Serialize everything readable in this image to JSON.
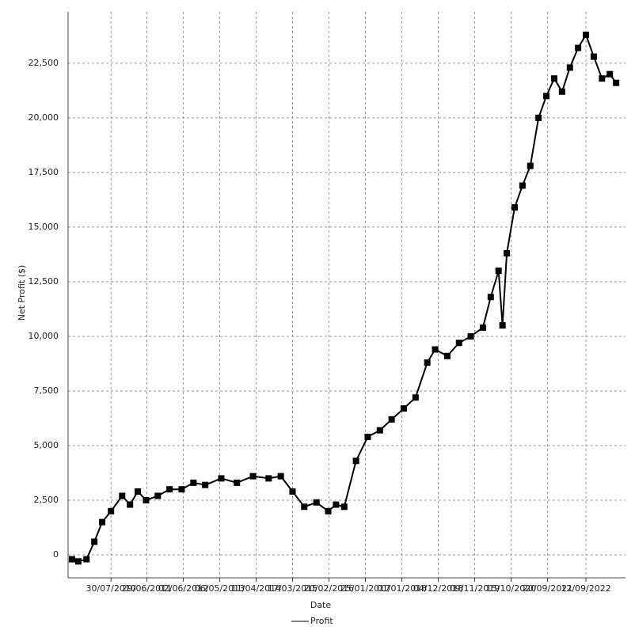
{
  "chart_data": {
    "type": "line",
    "y_label": "Net Profit ($)",
    "x_label": "Date",
    "x": [
      2009.58,
      2009.74,
      2009.95,
      2010.15,
      2010.35,
      2010.575,
      2010.86,
      2011.06,
      2011.26,
      2011.47,
      2011.77,
      2012.07,
      2012.38,
      2012.68,
      2012.98,
      2013.39,
      2013.79,
      2014.2,
      2014.6,
      2014.91,
      2015.21,
      2015.51,
      2015.82,
      2016.12,
      2016.32,
      2016.53,
      2016.83,
      2017.13,
      2017.44,
      2017.74,
      2018.05,
      2018.35,
      2018.65,
      2018.85,
      2019.16,
      2019.46,
      2019.76,
      2020.07,
      2020.27,
      2020.47,
      2020.57,
      2020.68,
      2020.88,
      2021.08,
      2021.28,
      2021.49,
      2021.69,
      2021.89,
      2022.09,
      2022.29,
      2022.5,
      2022.7,
      2022.9,
      2023.11,
      2023.31,
      2023.47
    ],
    "series": [
      {
        "name": "Profit",
        "color": "#000000",
        "values": [
          -200,
          -300,
          -200,
          600,
          1500,
          2000,
          2700,
          2300,
          2900,
          2500,
          2700,
          3000,
          3000,
          3300,
          3200,
          3500,
          3300,
          3600,
          3500,
          3600,
          2900,
          2200,
          2400,
          2000,
          2300,
          2200,
          4300,
          5400,
          5700,
          6200,
          6700,
          7200,
          8800,
          9400,
          9100,
          9700,
          10000,
          10400,
          11800,
          13000,
          10500,
          13800,
          15900,
          16900,
          17800,
          20000,
          21000,
          21800,
          21200,
          22300,
          23200,
          23800,
          22800,
          21800,
          22000,
          21600
        ]
      }
    ],
    "xlim": [
      2009.48,
      2023.71
    ],
    "xticks": [
      {
        "value": 2010.575,
        "label": "30/07/2010"
      },
      {
        "value": 2011.49,
        "label": "29/06/2011"
      },
      {
        "value": 2012.42,
        "label": "02/06/2012"
      },
      {
        "value": 2013.35,
        "label": "06/05/2013"
      },
      {
        "value": 2014.28,
        "label": "11/04/2014"
      },
      {
        "value": 2015.21,
        "label": "17/03/2015"
      },
      {
        "value": 2016.14,
        "label": "20/02/2016"
      },
      {
        "value": 2017.07,
        "label": "25/01/2017"
      },
      {
        "value": 2018.0,
        "label": "01/01/2018"
      },
      {
        "value": 2018.93,
        "label": "04/12/2018"
      },
      {
        "value": 2019.86,
        "label": "09/11/2019"
      },
      {
        "value": 2020.79,
        "label": "15/10/2020"
      },
      {
        "value": 2021.72,
        "label": "20/09/2021"
      },
      {
        "value": 2022.7,
        "label": "12/09/2022"
      }
    ],
    "ylim": [
      -1050,
      24850
    ],
    "yticks": [
      0,
      {
        "value": 2500,
        "label": "2,500"
      },
      {
        "value": 5000,
        "label": "5,000"
      },
      {
        "value": 7500,
        "label": "7,500"
      },
      {
        "value": 10000,
        "label": "10,000"
      },
      {
        "value": 12500,
        "label": "12,500"
      },
      {
        "value": 15000,
        "label": "15,000"
      },
      {
        "value": 17500,
        "label": "17,500"
      },
      {
        "value": 20000,
        "label": "20,000"
      },
      {
        "value": 22500,
        "label": "22,500"
      }
    ],
    "grid": true,
    "legend": "bottom"
  }
}
